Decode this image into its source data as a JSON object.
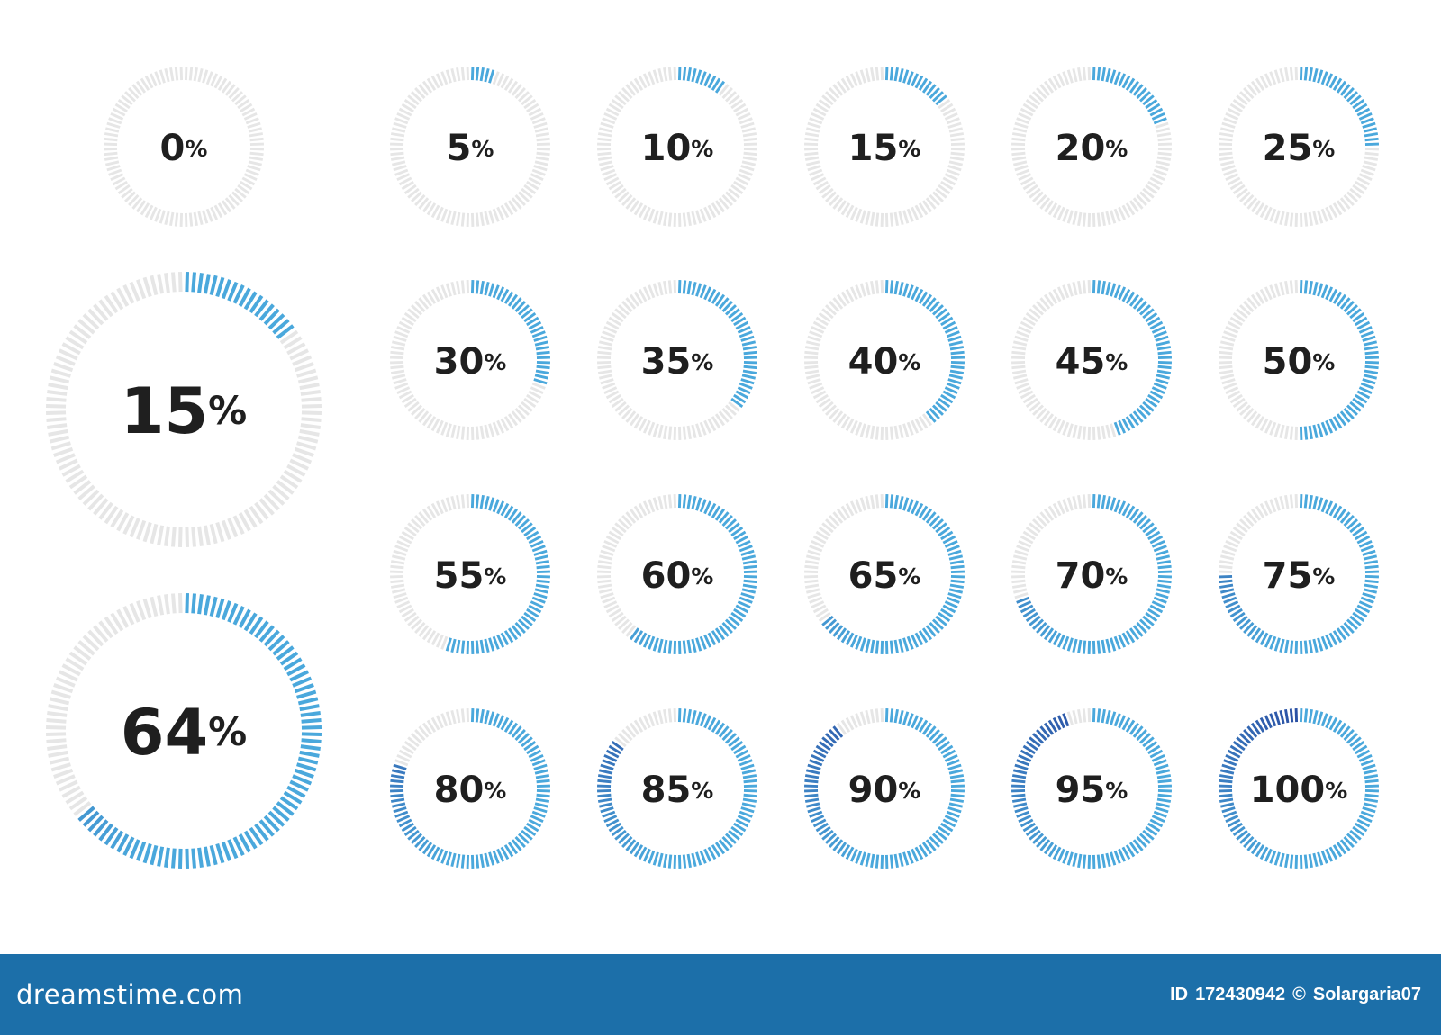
{
  "gauges": [
    {
      "value": 0,
      "label": "0"
    },
    {
      "value": 5,
      "label": "5"
    },
    {
      "value": 10,
      "label": "10"
    },
    {
      "value": 15,
      "label": "15"
    },
    {
      "value": 20,
      "label": "20"
    },
    {
      "value": 25,
      "label": "25"
    },
    {
      "value": 15,
      "label": "15"
    },
    {
      "value": 30,
      "label": "30"
    },
    {
      "value": 35,
      "label": "35"
    },
    {
      "value": 40,
      "label": "40"
    },
    {
      "value": 45,
      "label": "45"
    },
    {
      "value": 50,
      "label": "50"
    },
    {
      "value": 55,
      "label": "55"
    },
    {
      "value": 60,
      "label": "60"
    },
    {
      "value": 65,
      "label": "65"
    },
    {
      "value": 70,
      "label": "70"
    },
    {
      "value": 75,
      "label": "75"
    },
    {
      "value": 64,
      "label": "64"
    },
    {
      "value": 80,
      "label": "80"
    },
    {
      "value": 85,
      "label": "85"
    },
    {
      "value": 90,
      "label": "90"
    },
    {
      "value": 95,
      "label": "95"
    },
    {
      "value": 100,
      "label": "100"
    }
  ],
  "percent_sign": "%",
  "colors": {
    "track": "#e6e6e6",
    "fill_start": "#4aa8dc",
    "fill_end": "#2a4fa3",
    "footer": "#1c6fa9",
    "text": "#1f1f1f"
  },
  "footer": {
    "brand": "dreamstime.com",
    "id_label": "ID",
    "id_number": "172430942",
    "copyright_symbol": "©",
    "author": "Solargaria07"
  }
}
